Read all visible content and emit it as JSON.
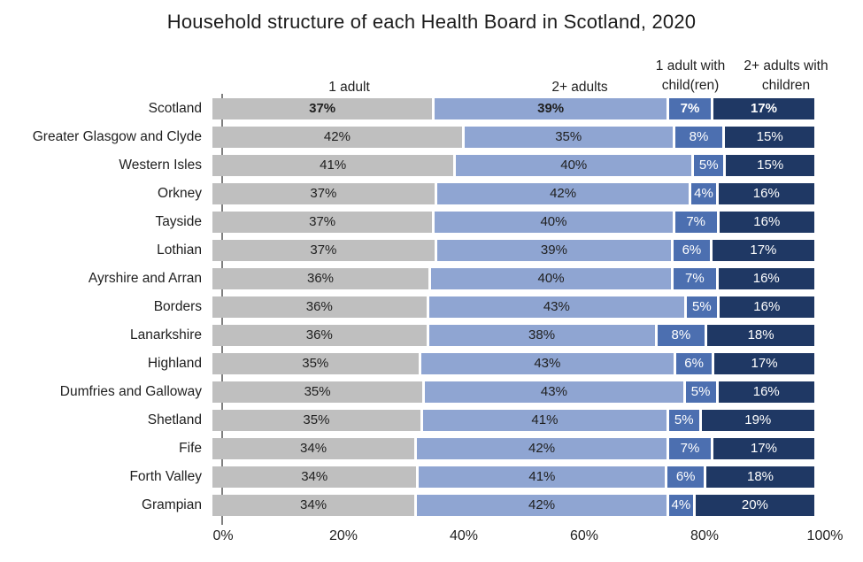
{
  "title": "Household structure of each Health Board in Scotland, 2020",
  "chart_data": {
    "type": "bar",
    "orientation": "horizontal",
    "stacked": true,
    "title": "Household structure of each Health Board in Scotland, 2020",
    "categories": [
      "Scotland",
      "Greater Glasgow and Clyde",
      "Western Isles",
      "Orkney",
      "Tayside",
      "Lothian",
      "Ayrshire and Arran",
      "Borders",
      "Lanarkshire",
      "Highland",
      "Dumfries and Galloway",
      "Shetland",
      "Fife",
      "Forth Valley",
      "Grampian"
    ],
    "series": [
      {
        "name": "1 adult",
        "color": "#BFBFBF",
        "label_color": "#1f1f1f",
        "values": [
          37,
          42,
          41,
          37,
          37,
          37,
          36,
          36,
          36,
          35,
          35,
          35,
          34,
          34,
          34
        ]
      },
      {
        "name": "2+ adults",
        "color": "#8FA5D2",
        "label_color": "#1f1f1f",
        "values": [
          39,
          35,
          40,
          42,
          40,
          39,
          40,
          43,
          38,
          43,
          43,
          41,
          42,
          41,
          42
        ]
      },
      {
        "name": "1 adult with child(ren)",
        "color": "#4C6FB0",
        "label_color": "#ffffff",
        "values": [
          7,
          8,
          5,
          4,
          7,
          6,
          7,
          5,
          8,
          6,
          5,
          5,
          7,
          6,
          4
        ]
      },
      {
        "name": "2+ adults with children",
        "color": "#1F3864",
        "label_color": "#ffffff",
        "values": [
          17,
          15,
          15,
          16,
          16,
          17,
          16,
          16,
          18,
          17,
          16,
          19,
          17,
          18,
          20
        ]
      }
    ],
    "value_suffix": "%",
    "emphasis_category": "Scotland",
    "xlim": [
      0,
      100
    ],
    "x_ticks": [
      "0%",
      "20%",
      "40%",
      "60%",
      "80%",
      "100%"
    ],
    "legend_position": "top",
    "grid": false
  }
}
